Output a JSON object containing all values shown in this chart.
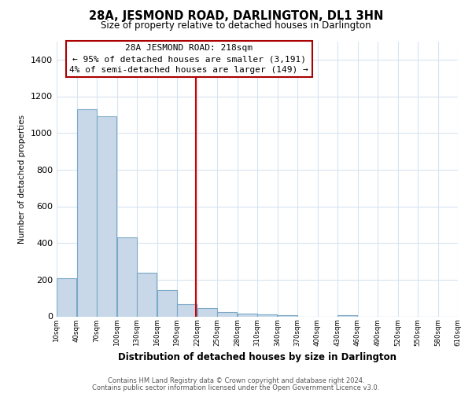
{
  "title": "28A, JESMOND ROAD, DARLINGTON, DL1 3HN",
  "subtitle": "Size of property relative to detached houses in Darlington",
  "xlabel": "Distribution of detached houses by size in Darlington",
  "ylabel": "Number of detached properties",
  "bar_color": "#c8d8e8",
  "bar_edge_color": "#7aa8c8",
  "vline_x": 218,
  "vline_color": "#cc0000",
  "annotation_title": "28A JESMOND ROAD: 218sqm",
  "annotation_line1": "← 95% of detached houses are smaller (3,191)",
  "annotation_line2": "4% of semi-detached houses are larger (149) →",
  "annotation_box_color": "#ffffff",
  "annotation_box_edge": "#aa0000",
  "bins": [
    10,
    40,
    70,
    100,
    130,
    160,
    190,
    220,
    250,
    280,
    310,
    340,
    370,
    400,
    430,
    460,
    490,
    520,
    550,
    580,
    610
  ],
  "counts": [
    210,
    1130,
    1090,
    430,
    240,
    145,
    65,
    45,
    25,
    15,
    10,
    5,
    0,
    0,
    5,
    0,
    0,
    0,
    0,
    0
  ],
  "ylim": [
    0,
    1500
  ],
  "yticks": [
    0,
    200,
    400,
    600,
    800,
    1000,
    1200,
    1400
  ],
  "footer1": "Contains HM Land Registry data © Crown copyright and database right 2024.",
  "footer2": "Contains public sector information licensed under the Open Government Licence v3.0.",
  "grid_color": "#d8e4f0"
}
